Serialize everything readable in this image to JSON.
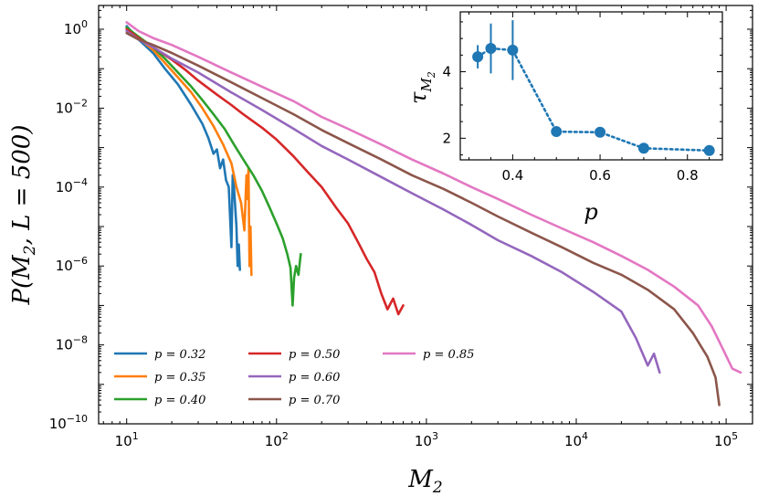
{
  "chart_data": [
    {
      "type": "line",
      "title": "",
      "xlabel": "M_2",
      "ylabel": "P(M_2, L = 500)",
      "xscale": "log",
      "yscale": "log",
      "xlim": [
        6.5,
        150000
      ],
      "ylim": [
        1e-10,
        4
      ],
      "x_ticks": [
        {
          "value": 10,
          "label": "10^1"
        },
        {
          "value": 100,
          "label": "10^2"
        },
        {
          "value": 1000,
          "label": "10^3"
        },
        {
          "value": 10000,
          "label": "10^4"
        },
        {
          "value": 100000,
          "label": "10^5"
        }
      ],
      "y_ticks": [
        {
          "value": 1,
          "label": "10^0"
        },
        {
          "value": 0.01,
          "label": "10^-2"
        },
        {
          "value": 0.0001,
          "label": "10^-4"
        },
        {
          "value": 1e-06,
          "label": "10^-6"
        },
        {
          "value": 1e-08,
          "label": "10^-8"
        },
        {
          "value": 1e-10,
          "label": "10^-10"
        }
      ],
      "legend_position": "bottom-left",
      "series": [
        {
          "name": "p = 0.32",
          "color": "#1f77b4",
          "x": [
            10,
            12,
            15,
            18,
            22,
            27,
            32,
            35,
            38,
            40,
            42,
            44,
            46,
            48,
            50,
            51,
            52,
            54,
            55,
            56,
            57
          ],
          "y": [
            1.2,
            0.55,
            0.25,
            0.1,
            0.04,
            0.012,
            0.004,
            0.0018,
            0.0007,
            0.0009,
            0.0003,
            0.0005,
            0.00015,
            0.0001,
            3e-06,
            0.0002,
            0.0001,
            1e-05,
            1e-06,
            3.5e-06,
            8e-07
          ]
        },
        {
          "name": "p = 0.35",
          "color": "#ff7f0e",
          "x": [
            10,
            12,
            15,
            18,
            22,
            27,
            32,
            38,
            44,
            50,
            54,
            58,
            61,
            63,
            64,
            65,
            66,
            67,
            68
          ],
          "y": [
            1.1,
            0.6,
            0.3,
            0.14,
            0.06,
            0.025,
            0.01,
            0.0035,
            0.0012,
            0.0004,
            0.0001,
            4e-05,
            8e-06,
            0.0002,
            5e-05,
            0.0003,
            1e-06,
            1e-05,
            6e-07
          ]
        },
        {
          "name": "p = 0.40",
          "color": "#2ca02c",
          "x": [
            10,
            12,
            15,
            18,
            22,
            27,
            32,
            38,
            45,
            52,
            60,
            70,
            80,
            90,
            100,
            110,
            118,
            124,
            128,
            131,
            135,
            140,
            145
          ],
          "y": [
            1.1,
            0.65,
            0.35,
            0.18,
            0.08,
            0.035,
            0.016,
            0.007,
            0.003,
            0.0012,
            0.0005,
            0.0002,
            8e-05,
            3e-05,
            1.2e-05,
            5e-06,
            2e-06,
            9e-07,
            1e-07,
            5e-07,
            1e-06,
            6e-07,
            2e-06
          ]
        },
        {
          "name": "p = 0.50",
          "color": "#d62728",
          "x": [
            10,
            12,
            15,
            20,
            25,
            30,
            40,
            50,
            60,
            80,
            100,
            130,
            160,
            200,
            250,
            300,
            350,
            400,
            450,
            500,
            550,
            600,
            650,
            700
          ],
          "y": [
            1.0,
            0.6,
            0.35,
            0.17,
            0.09,
            0.05,
            0.022,
            0.012,
            0.007,
            0.0032,
            0.0016,
            0.0006,
            0.00025,
            0.0001,
            3e-05,
            1.2e-05,
            4e-06,
            1.5e-06,
            7e-07,
            2e-07,
            8e-08,
            1.5e-07,
            6e-08,
            1e-07
          ]
        },
        {
          "name": "p = 0.60",
          "color": "#9467bd",
          "x": [
            10,
            12,
            15,
            20,
            30,
            50,
            80,
            130,
            200,
            300,
            500,
            800,
            1300,
            2000,
            3000,
            5000,
            8000,
            13000,
            20000,
            25000,
            30000,
            33000,
            36000
          ],
          "y": [
            0.9,
            0.55,
            0.35,
            0.18,
            0.08,
            0.025,
            0.009,
            0.003,
            0.0011,
            0.0005,
            0.00018,
            7e-05,
            2.7e-05,
            1.1e-05,
            4.5e-06,
            1.8e-06,
            7e-07,
            2.2e-07,
            7e-08,
            1.5e-08,
            3e-09,
            6e-09,
            2e-09
          ]
        },
        {
          "name": "p = 0.70",
          "color": "#8c564b",
          "x": [
            10,
            12,
            15,
            20,
            30,
            50,
            80,
            130,
            200,
            300,
            500,
            800,
            1300,
            2000,
            3000,
            5000,
            8000,
            13000,
            20000,
            30000,
            45000,
            60000,
            75000,
            85000,
            90000
          ],
          "y": [
            0.8,
            0.55,
            0.4,
            0.25,
            0.12,
            0.045,
            0.018,
            0.007,
            0.0028,
            0.0013,
            0.0005,
            0.0002,
            9e-05,
            4e-05,
            1.8e-05,
            7e-06,
            3e-06,
            1.2e-06,
            6e-07,
            2.5e-07,
            8e-08,
            2e-08,
            5e-09,
            1.5e-09,
            3e-10
          ]
        },
        {
          "name": "p = 0.85",
          "color": "#e377c2",
          "x": [
            10,
            12,
            15,
            20,
            30,
            50,
            80,
            130,
            200,
            300,
            500,
            800,
            1300,
            2000,
            3000,
            5000,
            8000,
            13000,
            20000,
            30000,
            45000,
            65000,
            80000,
            95000,
            110000,
            125000
          ],
          "y": [
            1.5,
            0.9,
            0.6,
            0.4,
            0.2,
            0.08,
            0.035,
            0.015,
            0.006,
            0.003,
            0.0012,
            0.0005,
            0.00022,
            0.0001,
            5e-05,
            2e-05,
            9e-06,
            4e-06,
            1.8e-06,
            8e-07,
            3e-07,
            1e-07,
            3e-08,
            8e-09,
            2.5e-09,
            2e-09
          ]
        }
      ]
    },
    {
      "type": "scatter",
      "title": "",
      "xlabel": "p",
      "ylabel": "τ_{M_2}",
      "xlim": [
        0.28,
        0.88
      ],
      "ylim": [
        1.35,
        5.8
      ],
      "x_ticks": [
        {
          "value": 0.4,
          "label": "0.4"
        },
        {
          "value": 0.6,
          "label": "0.6"
        },
        {
          "value": 0.8,
          "label": "0.8"
        }
      ],
      "y_ticks": [
        {
          "value": 2,
          "label": "2"
        },
        {
          "value": 4,
          "label": "4"
        }
      ],
      "color": "#1f77b4",
      "connector": "dotted",
      "points": [
        {
          "x": 0.32,
          "y": 4.45,
          "err": 0.35
        },
        {
          "x": 0.35,
          "y": 4.7,
          "err": 0.75
        },
        {
          "x": 0.4,
          "y": 4.65,
          "err": 0.9
        },
        {
          "x": 0.5,
          "y": 2.2,
          "err": 0.08
        },
        {
          "x": 0.6,
          "y": 2.18,
          "err": 0.06
        },
        {
          "x": 0.7,
          "y": 1.7,
          "err": 0.04
        },
        {
          "x": 0.85,
          "y": 1.63,
          "err": 0.04
        }
      ]
    }
  ]
}
